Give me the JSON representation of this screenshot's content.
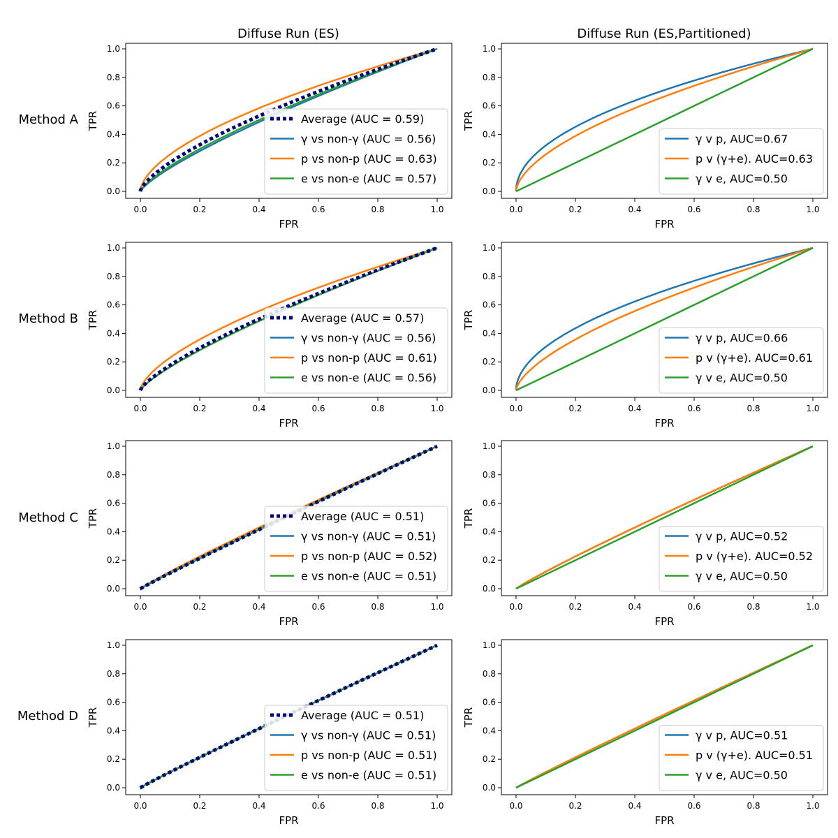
{
  "column_titles": [
    "Diffuse Run (ES)",
    "Diffuse Run (ES,Partitioned)"
  ],
  "row_labels": [
    "Method A",
    "Method B",
    "Method C",
    "Method D"
  ],
  "colors": {
    "average": "#000080",
    "gamma": "#1f77b4",
    "p": "#ff7f0e",
    "e": "#2ca02c"
  },
  "chart_data": [
    {
      "type": "line",
      "method": "Method A",
      "title": "Diffuse Run (ES)",
      "xlabel": "FPR",
      "ylabel": "TPR",
      "xlim": [
        0,
        1
      ],
      "ylim": [
        0,
        1
      ],
      "xticks": [
        "0.0",
        "0.2",
        "0.4",
        "0.6",
        "0.8",
        "1.0"
      ],
      "yticks": [
        "0.0",
        "0.2",
        "0.4",
        "0.6",
        "0.8",
        "1.0"
      ],
      "legend_position": "lower-right",
      "series": [
        {
          "key": "average",
          "label": "Average (AUC = 0.59)",
          "style": "dotted",
          "auc": 0.59
        },
        {
          "key": "gamma",
          "label": "γ vs non-γ (AUC = 0.56)",
          "style": "solid",
          "auc": 0.56
        },
        {
          "key": "p",
          "label": "p vs non-p (AUC = 0.63)",
          "style": "solid",
          "auc": 0.63
        },
        {
          "key": "e",
          "label": "e vs non-e (AUC = 0.57)",
          "style": "solid",
          "auc": 0.57
        }
      ]
    },
    {
      "type": "line",
      "method": "Method A",
      "title": "Diffuse Run (ES,Partitioned)",
      "xlabel": "FPR",
      "ylabel": "TPR",
      "xlim": [
        0,
        1
      ],
      "ylim": [
        0,
        1
      ],
      "xticks": [
        "0.0",
        "0.2",
        "0.4",
        "0.6",
        "0.8",
        "1.0"
      ],
      "yticks": [
        "0.0",
        "0.2",
        "0.4",
        "0.6",
        "0.8",
        "1.0"
      ],
      "legend_position": "lower-right",
      "series": [
        {
          "key": "gamma",
          "label": "γ v p, AUC=0.67",
          "style": "solid",
          "auc": 0.67
        },
        {
          "key": "p",
          "label": "p v (γ+e). AUC=0.63",
          "style": "solid",
          "auc": 0.63
        },
        {
          "key": "e",
          "label": "γ v e, AUC=0.50",
          "style": "solid",
          "auc": 0.5
        }
      ]
    },
    {
      "type": "line",
      "method": "Method B",
      "title": "",
      "xlabel": "FPR",
      "ylabel": "TPR",
      "xlim": [
        0,
        1
      ],
      "ylim": [
        0,
        1
      ],
      "xticks": [
        "0.0",
        "0.2",
        "0.4",
        "0.6",
        "0.8",
        "1.0"
      ],
      "yticks": [
        "0.0",
        "0.2",
        "0.4",
        "0.6",
        "0.8",
        "1.0"
      ],
      "legend_position": "lower-right",
      "series": [
        {
          "key": "average",
          "label": "Average (AUC = 0.57)",
          "style": "dotted",
          "auc": 0.57
        },
        {
          "key": "gamma",
          "label": "γ vs non-γ (AUC = 0.56)",
          "style": "solid",
          "auc": 0.56
        },
        {
          "key": "p",
          "label": "p vs non-p (AUC = 0.61)",
          "style": "solid",
          "auc": 0.61
        },
        {
          "key": "e",
          "label": "e vs non-e (AUC = 0.56)",
          "style": "solid",
          "auc": 0.56
        }
      ]
    },
    {
      "type": "line",
      "method": "Method B",
      "title": "",
      "xlabel": "FPR",
      "ylabel": "TPR",
      "xlim": [
        0,
        1
      ],
      "ylim": [
        0,
        1
      ],
      "xticks": [
        "0.0",
        "0.2",
        "0.4",
        "0.6",
        "0.8",
        "1.0"
      ],
      "yticks": [
        "0.0",
        "0.2",
        "0.4",
        "0.6",
        "0.8",
        "1.0"
      ],
      "legend_position": "lower-right",
      "series": [
        {
          "key": "gamma",
          "label": "γ v p, AUC=0.66",
          "style": "solid",
          "auc": 0.66
        },
        {
          "key": "p",
          "label": "p v (γ+e). AUC=0.61",
          "style": "solid",
          "auc": 0.61
        },
        {
          "key": "e",
          "label": "γ v e, AUC=0.50",
          "style": "solid",
          "auc": 0.5
        }
      ]
    },
    {
      "type": "line",
      "method": "Method C",
      "title": "",
      "xlabel": "FPR",
      "ylabel": "TPR",
      "xlim": [
        0,
        1
      ],
      "ylim": [
        0,
        1
      ],
      "xticks": [
        "0.0",
        "0.2",
        "0.4",
        "0.6",
        "0.8",
        "1.0"
      ],
      "yticks": [
        "0.0",
        "0.2",
        "0.4",
        "0.6",
        "0.8",
        "1.0"
      ],
      "legend_position": "lower-right",
      "series": [
        {
          "key": "average",
          "label": "Average (AUC = 0.51)",
          "style": "dotted",
          "auc": 0.51
        },
        {
          "key": "gamma",
          "label": "γ vs non-γ (AUC = 0.51)",
          "style": "solid",
          "auc": 0.51
        },
        {
          "key": "p",
          "label": "p vs non-p (AUC = 0.52)",
          "style": "solid",
          "auc": 0.52
        },
        {
          "key": "e",
          "label": "e vs non-e (AUC = 0.51)",
          "style": "solid",
          "auc": 0.51
        }
      ]
    },
    {
      "type": "line",
      "method": "Method C",
      "title": "",
      "xlabel": "FPR",
      "ylabel": "TPR",
      "xlim": [
        0,
        1
      ],
      "ylim": [
        0,
        1
      ],
      "xticks": [
        "0.0",
        "0.2",
        "0.4",
        "0.6",
        "0.8",
        "1.0"
      ],
      "yticks": [
        "0.0",
        "0.2",
        "0.4",
        "0.6",
        "0.8",
        "1.0"
      ],
      "legend_position": "lower-right",
      "series": [
        {
          "key": "gamma",
          "label": "γ v p, AUC=0.52",
          "style": "solid",
          "auc": 0.52
        },
        {
          "key": "p",
          "label": "p v (γ+e). AUC=0.52",
          "style": "solid",
          "auc": 0.52
        },
        {
          "key": "e",
          "label": "γ v e, AUC=0.50",
          "style": "solid",
          "auc": 0.5
        }
      ]
    },
    {
      "type": "line",
      "method": "Method D",
      "title": "",
      "xlabel": "FPR",
      "ylabel": "TPR",
      "xlim": [
        0,
        1
      ],
      "ylim": [
        0,
        1
      ],
      "xticks": [
        "0.0",
        "0.2",
        "0.4",
        "0.6",
        "0.8",
        "1.0"
      ],
      "yticks": [
        "0.0",
        "0.2",
        "0.4",
        "0.6",
        "0.8",
        "1.0"
      ],
      "legend_position": "lower-right",
      "series": [
        {
          "key": "average",
          "label": "Average (AUC = 0.51)",
          "style": "dotted",
          "auc": 0.51
        },
        {
          "key": "gamma",
          "label": "γ vs non-γ (AUC = 0.51)",
          "style": "solid",
          "auc": 0.51
        },
        {
          "key": "p",
          "label": "p vs non-p (AUC = 0.51)",
          "style": "solid",
          "auc": 0.51
        },
        {
          "key": "e",
          "label": "e vs non-e (AUC = 0.51)",
          "style": "solid",
          "auc": 0.51
        }
      ]
    },
    {
      "type": "line",
      "method": "Method D",
      "title": "",
      "xlabel": "FPR",
      "ylabel": "TPR",
      "xlim": [
        0,
        1
      ],
      "ylim": [
        0,
        1
      ],
      "xticks": [
        "0.0",
        "0.2",
        "0.4",
        "0.6",
        "0.8",
        "1.0"
      ],
      "yticks": [
        "0.0",
        "0.2",
        "0.4",
        "0.6",
        "0.8",
        "1.0"
      ],
      "legend_position": "lower-right",
      "series": [
        {
          "key": "gamma",
          "label": "γ v p, AUC=0.51",
          "style": "solid",
          "auc": 0.51
        },
        {
          "key": "p",
          "label": "p v (γ+e). AUC=0.51",
          "style": "solid",
          "auc": 0.51
        },
        {
          "key": "e",
          "label": "γ v e, AUC=0.50",
          "style": "solid",
          "auc": 0.5
        }
      ]
    }
  ]
}
